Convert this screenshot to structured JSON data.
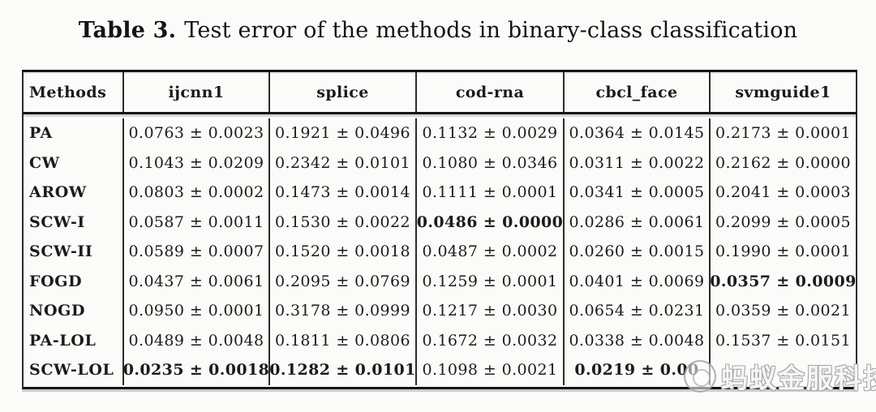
{
  "title": {
    "label": "Table 3.",
    "text": "Test error of the methods in binary-class classification"
  },
  "table": {
    "headers": [
      "Methods",
      "ijcnn1",
      "splice",
      "cod-rna",
      "cbcl_face",
      "svmguide1"
    ],
    "rows": [
      {
        "method": "PA",
        "values": [
          {
            "t": "0.0763 ± 0.0023"
          },
          {
            "t": "0.1921 ± 0.0496"
          },
          {
            "t": "0.1132 ± 0.0029"
          },
          {
            "t": "0.0364 ± 0.0145"
          },
          {
            "t": "0.2173 ± 0.0001"
          }
        ]
      },
      {
        "method": "CW",
        "values": [
          {
            "t": "0.1043 ± 0.0209"
          },
          {
            "t": "0.2342 ± 0.0101"
          },
          {
            "t": "0.1080 ± 0.0346"
          },
          {
            "t": "0.0311 ± 0.0022"
          },
          {
            "t": "0.2162 ± 0.0000"
          }
        ]
      },
      {
        "method": "AROW",
        "values": [
          {
            "t": "0.0803 ± 0.0002"
          },
          {
            "t": "0.1473 ± 0.0014"
          },
          {
            "t": "0.1111 ± 0.0001"
          },
          {
            "t": "0.0341 ± 0.0005"
          },
          {
            "t": "0.2041 ± 0.0003"
          }
        ]
      },
      {
        "method": "SCW-I",
        "values": [
          {
            "t": "0.0587 ± 0.0011"
          },
          {
            "t": "0.1530 ± 0.0022"
          },
          {
            "t": "0.0486 ± 0.0000",
            "b": true
          },
          {
            "t": "0.0286 ± 0.0061"
          },
          {
            "t": "0.2099 ± 0.0005"
          }
        ]
      },
      {
        "method": "SCW-II",
        "values": [
          {
            "t": "0.0589 ± 0.0007"
          },
          {
            "t": "0.1520 ± 0.0018"
          },
          {
            "t": "0.0487 ± 0.0002"
          },
          {
            "t": "0.0260 ± 0.0015"
          },
          {
            "t": "0.1990 ± 0.0001"
          }
        ]
      },
      {
        "method": "FOGD",
        "values": [
          {
            "t": "0.0437 ± 0.0061"
          },
          {
            "t": "0.2095 ± 0.0769"
          },
          {
            "t": "0.1259 ± 0.0001"
          },
          {
            "t": "0.0401 ± 0.0069"
          },
          {
            "t": "0.0357 ± 0.0009",
            "b": true
          }
        ]
      },
      {
        "method": "NOGD",
        "values": [
          {
            "t": "0.0950 ± 0.0001"
          },
          {
            "t": "0.3178 ± 0.0999"
          },
          {
            "t": "0.1217 ± 0.0030"
          },
          {
            "t": "0.0654 ± 0.0231"
          },
          {
            "t": "0.0359 ± 0.0021"
          }
        ]
      },
      {
        "method": "PA-LOL",
        "values": [
          {
            "t": "0.0489 ± 0.0048"
          },
          {
            "t": "0.1811 ± 0.0806"
          },
          {
            "t": "0.1672 ± 0.0032"
          },
          {
            "t": "0.0338 ± 0.0048"
          },
          {
            "t": "0.1537 ± 0.0151"
          }
        ]
      },
      {
        "method": "SCW-LOL",
        "values": [
          {
            "t": "0.0235 ± 0.0018",
            "b": true
          },
          {
            "t": "0.1282 ± 0.0101",
            "b": true
          },
          {
            "t": "0.1098 ± 0.0021"
          },
          {
            "t": "0.0219 ± 0.00",
            "b": true
          },
          {
            "t": ""
          }
        ]
      }
    ]
  },
  "watermark": {
    "text": "蚂蚁金服科技"
  }
}
